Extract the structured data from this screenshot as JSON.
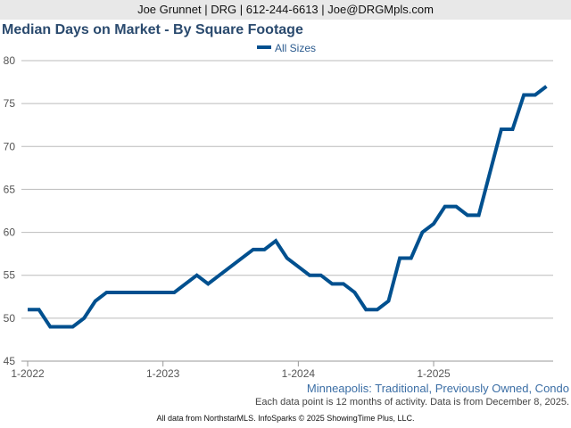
{
  "header": {
    "contact": "Joe Grunnet | DRG | 612-244-6613 | Joe@DRGMpls.com"
  },
  "chart_data": {
    "type": "line",
    "title": "Median Days on Market - By Square Footage",
    "xlabel": "",
    "ylabel": "",
    "ylim": [
      45,
      80
    ],
    "yticks": [
      45,
      50,
      55,
      60,
      65,
      70,
      75,
      80
    ],
    "xticks": [
      {
        "label": "1-2022",
        "index": 0
      },
      {
        "label": "1-2023",
        "index": 12
      },
      {
        "label": "1-2024",
        "index": 24
      },
      {
        "label": "1-2025",
        "index": 36
      }
    ],
    "grid": true,
    "legend_placement": "top-center",
    "series": [
      {
        "name": "All Sizes",
        "color": "#00508f",
        "start": "2022-01",
        "values": [
          51,
          51,
          49,
          49,
          49,
          50,
          52,
          53,
          53,
          53,
          53,
          53,
          53,
          53,
          54,
          55,
          54,
          55,
          56,
          57,
          58,
          58,
          59,
          57,
          56,
          55,
          55,
          54,
          54,
          53,
          51,
          51,
          52,
          57,
          57,
          60,
          61,
          63,
          63,
          62,
          62,
          67,
          72,
          72,
          76,
          76,
          77
        ]
      }
    ]
  },
  "footer": {
    "region": "Minneapolis: Traditional, Previously Owned, Condo",
    "note": "Each data point is 12 months of activity. Data is from December 8, 2025.",
    "source": "All data from NorthstarMLS. InfoSparks © 2025 ShowingTime Plus, LLC."
  }
}
